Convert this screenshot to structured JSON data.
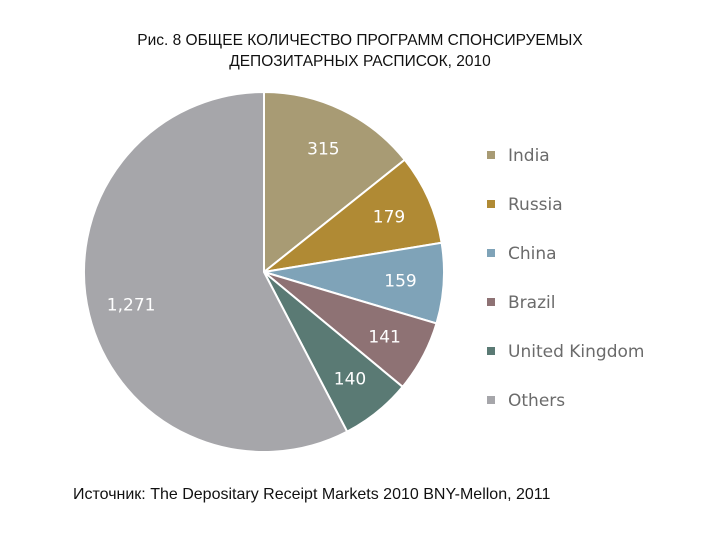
{
  "title_lines": [
    "Рис. 8  ОБЩЕЕ КОЛИЧЕСТВО ПРОГРАММ СПОНСИРУЕМЫХ",
    "ДЕПОЗИТАРНЫХ РАСПИСОК,  2010"
  ],
  "source": "Источник: The Depositary Receipt Markets 2010 BNY-Mellon, 2011",
  "chart_data": {
    "type": "pie",
    "title": "Рис. 8  ОБЩЕЕ КОЛИЧЕСТВО ПРОГРАММ СПОНСИРУЕМЫХ ДЕПОЗИТАРНЫХ РАСПИСОК,  2010",
    "legend_position": "right",
    "slices": [
      {
        "name": "India",
        "value": 315,
        "label": "315",
        "color": "#a89b74"
      },
      {
        "name": "Russia",
        "value": 179,
        "label": "179",
        "color": "#b08a34"
      },
      {
        "name": "China",
        "value": 159,
        "label": "159",
        "color": "#7fa3b8"
      },
      {
        "name": "Brazil",
        "value": 141,
        "label": "141",
        "color": "#8e7274"
      },
      {
        "name": "United Kingdom",
        "value": 140,
        "label": "140",
        "color": "#5a7a74"
      },
      {
        "name": "Others",
        "value": 1271,
        "label": "1,271",
        "color": "#a6a6aa"
      }
    ]
  }
}
